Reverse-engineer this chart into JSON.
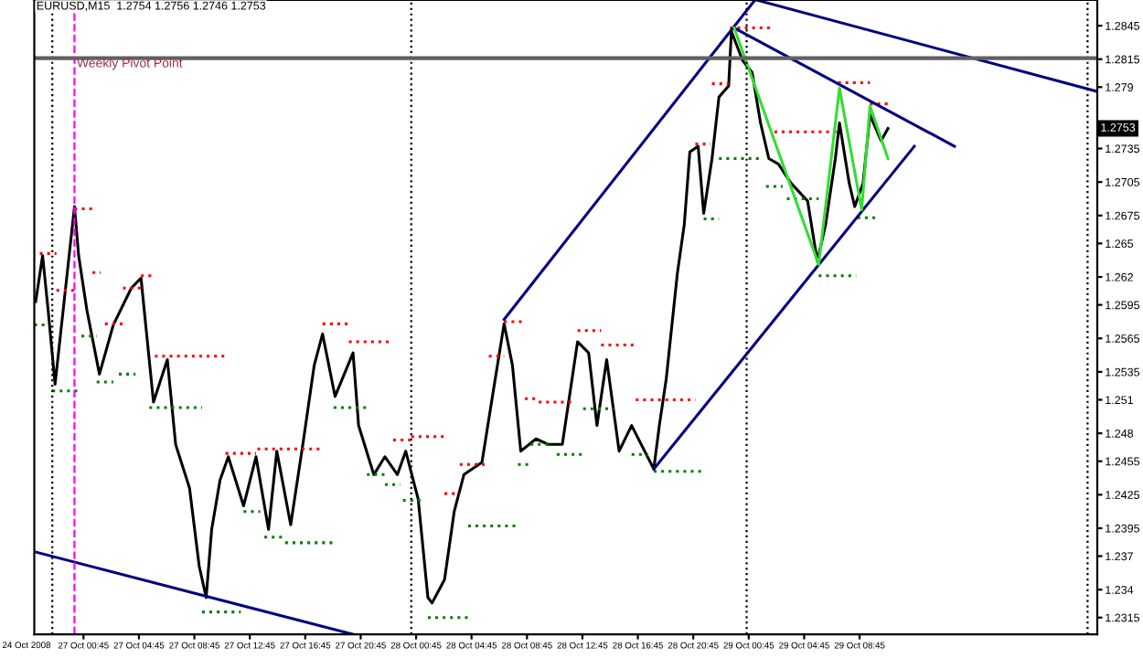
{
  "chart_data": {
    "type": "line",
    "title": "EURUSD,M15  1.2754 1.2756 1.2746 1.2753",
    "xlim": [
      "2008-10-26T21:12",
      "2008-10-30T01:54"
    ],
    "ylim": [
      1.23,
      1.2868
    ],
    "grid": false,
    "legend": false,
    "xticks": [
      {
        "value": "2008-10-27T00:45",
        "label": "27 Oct 00:45"
      },
      {
        "value": "2008-10-27T04:45",
        "label": "27 Oct 04:45"
      },
      {
        "value": "2008-10-27T08:45",
        "label": "27 Oct 08:45"
      },
      {
        "value": "2008-10-27T12:45",
        "label": "27 Oct 12:45"
      },
      {
        "value": "2008-10-27T16:45",
        "label": "27 Oct 16:45"
      },
      {
        "value": "2008-10-27T20:45",
        "label": "27 Oct 20:45"
      },
      {
        "value": "2008-10-28T00:45",
        "label": "28 Oct 00:45"
      },
      {
        "value": "2008-10-28T04:45",
        "label": "28 Oct 04:45"
      },
      {
        "value": "2008-10-28T08:45",
        "label": "28 Oct 08:45"
      },
      {
        "value": "2008-10-28T12:45",
        "label": "28 Oct 12:45"
      },
      {
        "value": "2008-10-28T16:45",
        "label": "28 Oct 16:45"
      },
      {
        "value": "2008-10-28T20:45",
        "label": "28 Oct 20:45"
      },
      {
        "value": "2008-10-29T00:45",
        "label": "29 Oct 00:45"
      },
      {
        "value": "2008-10-29T04:45",
        "label": "29 Oct 04:45"
      },
      {
        "value": "2008-10-29T08:45",
        "label": "29 Oct 08:45"
      }
    ],
    "yticks": [
      1.2845,
      1.2815,
      1.279,
      1.2735,
      1.2705,
      1.2675,
      1.265,
      1.262,
      1.2595,
      1.2565,
      1.2535,
      1.251,
      1.248,
      1.2455,
      1.2425,
      1.2395,
      1.237,
      1.234,
      1.2315
    ],
    "series": [
      {
        "color": "#000000",
        "line_style": "solid",
        "x": [
          "2008-10-26T21:18",
          "2008-10-26T21:48",
          "2008-10-26T22:12",
          "2008-10-26T22:42",
          "2008-10-27T00:06",
          "2008-10-27T00:24",
          "2008-10-27T01:00",
          "2008-10-27T01:54",
          "2008-10-27T02:54",
          "2008-10-27T04:12",
          "2008-10-27T04:54",
          "2008-10-27T05:12",
          "2008-10-27T05:48",
          "2008-10-27T06:48",
          "2008-10-27T07:24",
          "2008-10-27T08:24",
          "2008-10-27T09:06",
          "2008-10-27T09:36",
          "2008-10-27T10:00",
          "2008-10-27T10:36",
          "2008-10-27T11:12",
          "2008-10-27T12:18",
          "2008-10-27T13:12",
          "2008-10-27T14:06",
          "2008-10-27T14:42",
          "2008-10-27T15:42",
          "2008-10-27T16:36",
          "2008-10-27T17:24",
          "2008-10-27T18:00",
          "2008-10-27T18:54",
          "2008-10-27T20:12",
          "2008-10-27T20:36",
          "2008-10-27T21:42",
          "2008-10-27T22:30",
          "2008-10-27T23:24",
          "2008-10-28T00:00",
          "2008-10-28T00:54",
          "2008-10-28T01:36",
          "2008-10-28T01:54",
          "2008-10-28T02:48",
          "2008-10-28T03:30",
          "2008-10-28T04:12",
          "2008-10-28T05:30",
          "2008-10-28T06:24",
          "2008-10-28T07:06",
          "2008-10-28T07:42",
          "2008-10-28T08:18",
          "2008-10-28T09:24",
          "2008-10-28T10:18",
          "2008-10-28T11:18",
          "2008-10-28T12:24",
          "2008-10-28T13:12",
          "2008-10-28T13:48",
          "2008-10-28T14:30",
          "2008-10-28T15:24",
          "2008-10-28T16:18",
          "2008-10-28T17:54",
          "2008-10-28T18:18",
          "2008-10-28T18:48",
          "2008-10-28T19:36",
          "2008-10-28T20:06",
          "2008-10-28T20:30",
          "2008-10-28T21:06",
          "2008-10-28T21:30",
          "2008-10-28T22:06",
          "2008-10-28T22:36",
          "2008-10-28T23:18",
          "2008-10-28T23:30",
          "2008-10-29T00:18",
          "2008-10-29T01:00",
          "2008-10-29T01:36",
          "2008-10-29T02:12",
          "2008-10-29T02:54",
          "2008-10-29T03:48",
          "2008-10-29T05:00",
          "2008-10-29T05:42",
          "2008-10-29T06:18",
          "2008-10-29T07:00",
          "2008-10-29T07:18",
          "2008-10-29T08:00",
          "2008-10-29T08:24",
          "2008-10-29T09:00",
          "2008-10-29T09:30",
          "2008-10-29T10:18",
          "2008-10-29T10:48"
        ],
        "values": [
          1.2598,
          1.2639,
          1.259,
          1.2524,
          1.2683,
          1.2639,
          1.259,
          1.2533,
          1.2577,
          1.261,
          1.2619,
          1.2582,
          1.2508,
          1.2546,
          1.247,
          1.2431,
          1.2361,
          1.2333,
          1.2394,
          1.2438,
          1.2459,
          1.2415,
          1.2459,
          1.2394,
          1.2464,
          1.2398,
          1.2472,
          1.2541,
          1.2569,
          1.2513,
          1.2552,
          1.2487,
          1.2443,
          1.2459,
          1.2443,
          1.2464,
          1.2421,
          1.2333,
          1.2328,
          1.2349,
          1.241,
          1.2443,
          1.2454,
          1.2524,
          1.2578,
          1.2541,
          1.2464,
          1.2475,
          1.247,
          1.247,
          1.2562,
          1.2552,
          1.2487,
          1.2546,
          1.2464,
          1.2487,
          1.2448,
          1.2487,
          1.2529,
          1.2623,
          1.2667,
          1.2732,
          1.2737,
          1.2677,
          1.2726,
          1.2781,
          1.2791,
          1.284,
          1.2814,
          1.2803,
          1.2758,
          1.2726,
          1.2721,
          1.2704,
          1.2688,
          1.2634,
          1.2667,
          1.2726,
          1.2758,
          1.2704,
          1.2683,
          1.2704,
          1.2765,
          1.2742,
          1.2753
        ]
      },
      {
        "color": "#ff0000",
        "line_style": "dotted",
        "x": [
          "2008-10-26T21:36",
          "2008-10-26T22:48",
          null,
          "2008-10-26T22:48",
          "2008-10-27T00:06",
          null,
          "2008-10-27T00:06",
          "2008-10-27T01:24",
          null,
          "2008-10-27T01:24",
          "2008-10-27T02:00",
          null,
          "2008-10-27T02:18",
          "2008-10-27T03:36",
          null,
          "2008-10-27T03:36",
          "2008-10-27T04:54",
          null,
          "2008-10-27T04:54",
          "2008-10-27T05:54",
          null,
          "2008-10-27T05:54",
          "2008-10-27T11:00",
          null,
          "2008-10-27T11:00",
          "2008-10-27T13:12",
          null,
          "2008-10-27T13:18",
          "2008-10-27T18:00",
          null,
          "2008-10-27T18:00",
          "2008-10-27T19:54",
          null,
          "2008-10-27T19:54",
          "2008-10-27T23:06",
          null,
          "2008-10-27T23:06",
          "2008-10-28T00:24",
          null,
          "2008-10-28T00:24",
          "2008-10-28T02:48",
          null,
          "2008-10-28T02:48",
          "2008-10-28T03:54",
          null,
          "2008-10-28T03:54",
          "2008-10-28T06:00",
          null,
          "2008-10-28T06:00",
          "2008-10-28T07:06",
          null,
          "2008-10-28T07:06",
          "2008-10-28T08:36",
          null,
          "2008-10-28T08:36",
          "2008-10-28T09:36",
          null,
          "2008-10-28T09:36",
          "2008-10-28T12:12",
          null,
          "2008-10-28T12:24",
          "2008-10-28T14:06",
          null,
          "2008-10-28T14:06",
          "2008-10-28T16:36",
          null,
          "2008-10-28T16:36",
          "2008-10-28T20:54",
          null,
          "2008-10-28T20:54",
          "2008-10-28T22:00",
          null,
          "2008-10-28T22:06",
          "2008-10-28T23:18",
          null,
          "2008-10-28T23:24",
          "2008-10-29T02:36",
          null,
          "2008-10-29T02:36",
          "2008-10-29T07:06",
          null,
          "2008-10-29T07:12",
          "2008-10-29T09:30",
          null,
          "2008-10-29T09:30",
          "2008-10-29T10:48",
          null
        ],
        "values": [
          1.2641,
          1.2641,
          null,
          1.2608,
          1.2608,
          null,
          1.2681,
          1.2681,
          null,
          1.2624,
          1.2624,
          null,
          1.2578,
          1.2578,
          null,
          1.261,
          1.261,
          null,
          1.2621,
          1.2621,
          null,
          1.2549,
          1.2549,
          null,
          1.2462,
          1.2462,
          null,
          1.2466,
          1.2466,
          null,
          1.2578,
          1.2578,
          null,
          1.2562,
          1.2562,
          null,
          1.2474,
          1.2474,
          null,
          1.2477,
          1.2477,
          null,
          1.2426,
          1.2426,
          null,
          1.2452,
          1.2452,
          null,
          1.2549,
          1.2549,
          null,
          1.258,
          1.258,
          null,
          1.2511,
          1.2511,
          null,
          1.2508,
          1.2508,
          null,
          1.2572,
          1.2572,
          null,
          1.2559,
          1.2559,
          null,
          1.251,
          1.251,
          null,
          1.2739,
          1.2739,
          null,
          1.2793,
          1.2793,
          null,
          1.2843,
          1.2843,
          null,
          1.275,
          1.275,
          null,
          1.2794,
          1.2794,
          null,
          1.2775,
          1.2775,
          null
        ]
      },
      {
        "color": "#008000",
        "line_style": "dotted",
        "x": [
          "2008-10-26T21:12",
          "2008-10-26T22:12",
          null,
          "2008-10-26T22:30",
          "2008-10-27T00:30",
          null,
          "2008-10-27T00:36",
          "2008-10-27T01:42",
          null,
          "2008-10-27T01:42",
          "2008-10-27T02:54",
          null,
          "2008-10-27T03:18",
          "2008-10-27T04:30",
          null,
          "2008-10-27T05:30",
          "2008-10-27T09:18",
          null,
          "2008-10-27T09:18",
          "2008-10-27T12:06",
          null,
          "2008-10-27T12:18",
          "2008-10-27T13:30",
          null,
          "2008-10-27T13:48",
          "2008-10-27T15:18",
          null,
          "2008-10-27T15:18",
          "2008-10-27T18:42",
          null,
          "2008-10-27T18:48",
          "2008-10-27T21:12",
          null,
          "2008-10-27T21:12",
          "2008-10-27T22:30",
          null,
          "2008-10-27T22:30",
          "2008-10-27T23:36",
          null,
          "2008-10-27T23:48",
          "2008-10-28T01:18",
          null,
          "2008-10-28T01:36",
          "2008-10-28T04:30",
          null,
          "2008-10-28T04:30",
          "2008-10-28T08:06",
          null,
          "2008-10-28T08:06",
          "2008-10-28T09:00",
          null,
          "2008-10-28T09:00",
          "2008-10-28T10:36",
          null,
          "2008-10-28T10:54",
          "2008-10-28T12:48",
          null,
          "2008-10-28T12:48",
          "2008-10-28T15:00",
          null,
          "2008-10-28T16:18",
          "2008-10-28T17:30",
          null,
          "2008-10-28T17:54",
          "2008-10-28T21:24",
          null,
          "2008-10-28T21:30",
          "2008-10-28T22:36",
          null,
          "2008-10-28T22:36",
          "2008-10-29T01:48",
          null,
          "2008-10-29T02:00",
          "2008-10-29T03:12",
          null,
          "2008-10-29T03:30",
          "2008-10-29T05:48",
          null,
          "2008-10-29T05:48",
          "2008-10-29T08:30",
          null,
          "2008-10-29T08:36",
          "2008-10-29T10:06",
          null
        ],
        "values": [
          1.2577,
          1.2577,
          null,
          1.2518,
          1.2518,
          null,
          1.2567,
          1.2567,
          null,
          1.2526,
          1.2526,
          null,
          1.2533,
          1.2533,
          null,
          1.2503,
          1.2503,
          null,
          1.232,
          1.232,
          null,
          1.241,
          1.241,
          null,
          1.2387,
          1.2387,
          null,
          1.2382,
          1.2382,
          null,
          1.2503,
          1.2503,
          null,
          1.2443,
          1.2443,
          null,
          1.2434,
          1.2434,
          null,
          1.242,
          1.242,
          null,
          1.2315,
          1.2315,
          null,
          1.2397,
          1.2397,
          null,
          1.2452,
          1.2452,
          null,
          1.247,
          1.247,
          null,
          1.2461,
          1.2461,
          null,
          1.2502,
          1.2502,
          null,
          1.2461,
          1.2461,
          null,
          1.2446,
          1.2446,
          null,
          1.2672,
          1.2672,
          null,
          1.2726,
          1.2726,
          null,
          1.2701,
          1.2701,
          null,
          1.269,
          1.269,
          null,
          1.2621,
          1.2621,
          null,
          1.2673,
          1.2673,
          null
        ]
      },
      {
        "color": "#000080",
        "line_style": "solid",
        "x": [
          "2008-10-28T07:06",
          "2008-10-29T01:12"
        ],
        "values": [
          1.2582,
          1.2868
        ]
      },
      {
        "color": "#000080",
        "line_style": "solid",
        "x": [
          "2008-10-28T17:54",
          "2008-10-29T12:42"
        ],
        "values": [
          1.2448,
          1.2737
        ]
      },
      {
        "color": "#000080",
        "line_style": "solid",
        "x": [
          "2008-10-29T01:18",
          "2008-10-30T01:54"
        ],
        "values": [
          1.2868,
          1.2786
        ]
      },
      {
        "color": "#000080",
        "line_style": "solid",
        "x": [
          "2008-10-28T23:42",
          "2008-10-29T15:36"
        ],
        "values": [
          1.2843,
          1.2737
        ]
      },
      {
        "color": "#000080",
        "line_style": "solid",
        "x": [
          "2008-10-26T21:12",
          "2008-10-27T20:12"
        ],
        "values": [
          1.2374,
          1.23
        ]
      },
      {
        "color": "#33dd33",
        "line_style": "solid",
        "x": [
          "2008-10-28T23:42",
          "2008-10-29T05:48",
          "2008-10-29T07:18",
          "2008-10-29T08:54",
          "2008-10-29T09:30",
          "2008-10-29T10:48"
        ],
        "values": [
          1.2843,
          1.2631,
          1.2789,
          1.268,
          1.2773,
          1.2726
        ]
      }
    ],
    "ref_lines": [
      {
        "axis": "x",
        "value": "2008-10-26T22:30",
        "color": "#000000",
        "line_style": "dotted"
      },
      {
        "axis": "x",
        "value": "2008-10-28T00:24",
        "color": "#000000",
        "line_style": "dotted"
      },
      {
        "axis": "x",
        "value": "2008-10-29T00:36",
        "color": "#000000",
        "line_style": "dotted"
      },
      {
        "axis": "x",
        "value": "2008-10-30T01:12",
        "color": "#000000",
        "line_style": "dotted"
      },
      {
        "axis": "x",
        "value": "2008-10-27T00:06",
        "color": "#ff00ff",
        "line_style": "dashed"
      },
      {
        "axis": "y",
        "value": 1.2816,
        "label": "Weekly Pivot Point",
        "color": "#606060",
        "line_style": "solid"
      }
    ],
    "annotations": [
      "24 Oct 2008",
      {
        "text": "1.2753",
        "y": 1.2753
      }
    ]
  }
}
